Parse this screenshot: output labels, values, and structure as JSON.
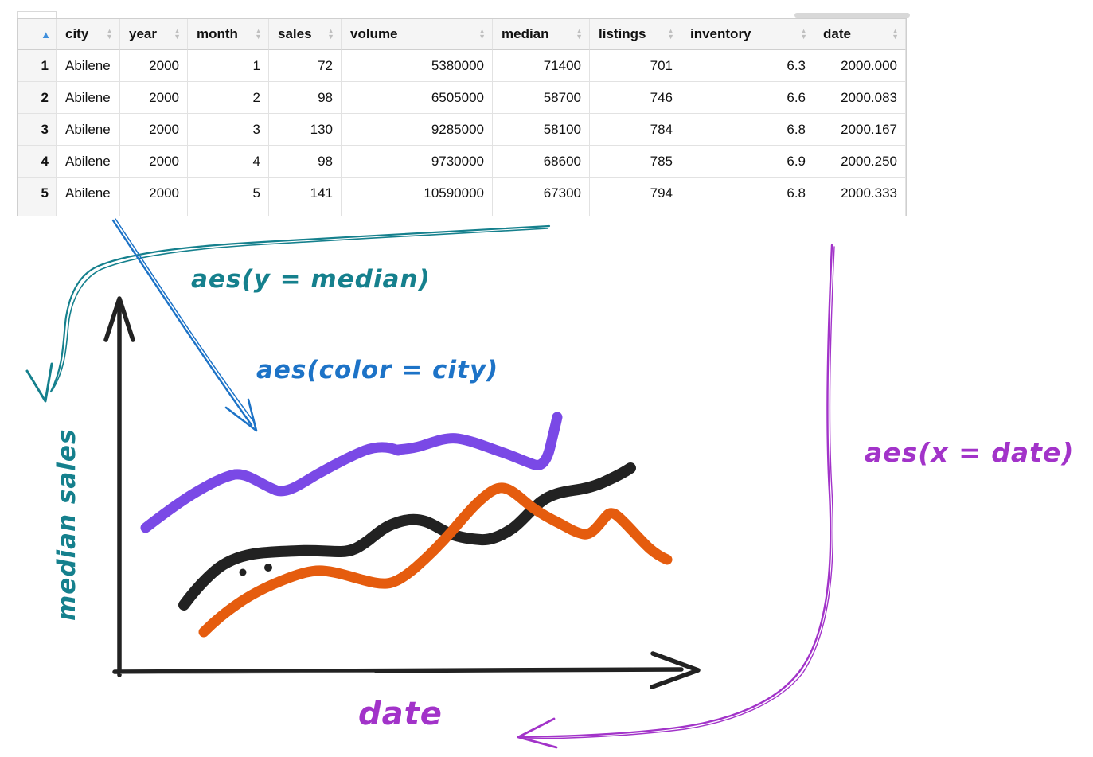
{
  "table": {
    "sort_ascending_icon": "▲",
    "sort_up_icon": "▲",
    "sort_down_icon": "▼",
    "columns": [
      "city",
      "year",
      "month",
      "sales",
      "volume",
      "median",
      "listings",
      "inventory",
      "date"
    ],
    "rows": [
      [
        "1",
        "Abilene",
        "2000",
        "1",
        "72",
        "5380000",
        "71400",
        "701",
        "6.3",
        "2000.000"
      ],
      [
        "2",
        "Abilene",
        "2000",
        "2",
        "98",
        "6505000",
        "58700",
        "746",
        "6.6",
        "2000.083"
      ],
      [
        "3",
        "Abilene",
        "2000",
        "3",
        "130",
        "9285000",
        "58100",
        "784",
        "6.8",
        "2000.167"
      ],
      [
        "4",
        "Abilene",
        "2000",
        "4",
        "98",
        "9730000",
        "68600",
        "785",
        "6.9",
        "2000.250"
      ],
      [
        "5",
        "Abilene",
        "2000",
        "5",
        "141",
        "10590000",
        "67300",
        "794",
        "6.8",
        "2000.333"
      ]
    ]
  },
  "sketch": {
    "y_axis_label": "median sales",
    "x_axis_label": "date",
    "annotations": {
      "aes_y": "aes(y = median)",
      "aes_color": "aes(color = city)",
      "aes_x": "aes(x = date)"
    },
    "lines": [
      {
        "name": "city-series-violet",
        "color": "#7a49e6"
      },
      {
        "name": "city-series-black",
        "color": "#222222"
      },
      {
        "name": "city-series-orange",
        "color": "#e55c0e"
      }
    ]
  },
  "colors": {
    "teal": "#15808d",
    "blue": "#1d73c7",
    "magenta": "#a233c9",
    "violet": "#7a49e6",
    "orange": "#e55c0e",
    "ink": "#222222",
    "sort_active": "#3f8fdc",
    "sort_inactive": "#bfbfbf",
    "header_bg": "#f5f5f5"
  }
}
